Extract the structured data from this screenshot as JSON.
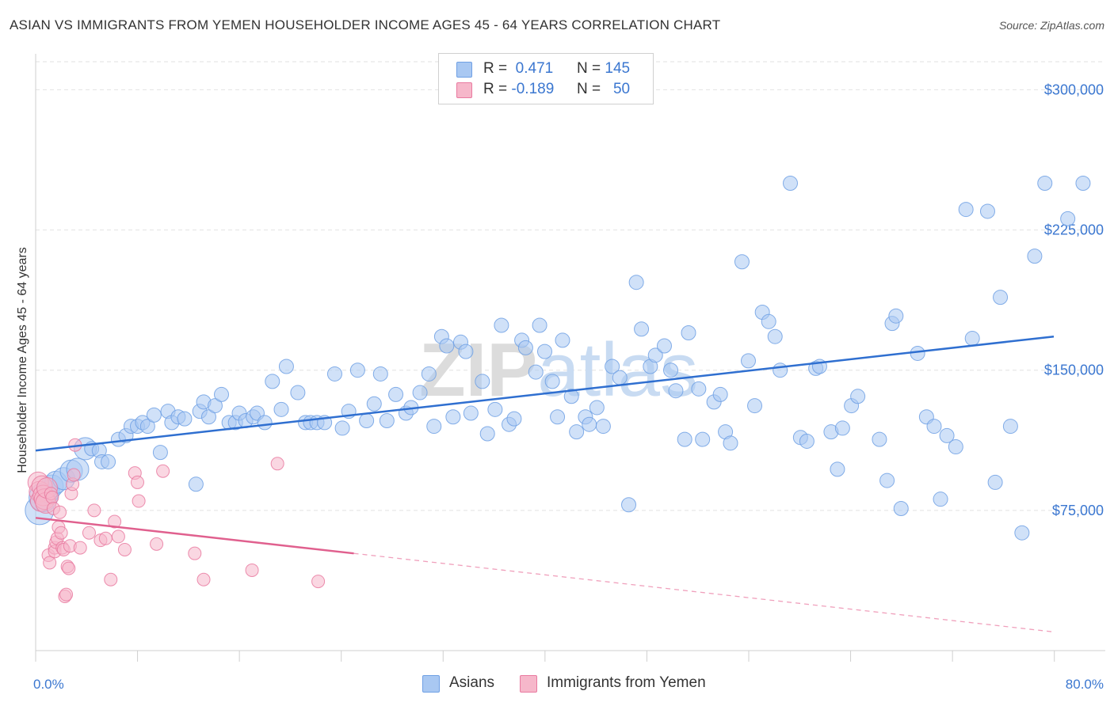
{
  "header": {
    "title": "ASIAN VS IMMIGRANTS FROM YEMEN HOUSEHOLDER INCOME AGES 45 - 64 YEARS CORRELATION CHART",
    "source": "Source: ZipAtlas.com"
  },
  "legend_top": {
    "rows": [
      {
        "r_label": "R =",
        "r_value": "0.471",
        "n_label": "N =",
        "n_value": "145",
        "color": "#a9c8f2"
      },
      {
        "r_label": "R =",
        "r_value": "-0.189",
        "n_label": "N =",
        "n_value": "50",
        "color": "#f6b7ca"
      }
    ]
  },
  "legend_bottom": {
    "items": [
      {
        "label": "Asians",
        "color": "#a9c8f2"
      },
      {
        "label": "Immigrants from Yemen",
        "color": "#f6b7ca"
      }
    ]
  },
  "watermark": "ZIPatlas",
  "chart_data": {
    "type": "scatter",
    "title": "ASIAN VS IMMIGRANTS FROM YEMEN HOUSEHOLDER INCOME AGES 45 - 64 YEARS CORRELATION CHART",
    "xlabel": "",
    "ylabel": "Householder Income Ages 45 - 64 years",
    "xlim": [
      0,
      80
    ],
    "ylim": [
      0,
      315000
    ],
    "x_tick_labels": [
      "0.0%",
      "80.0%"
    ],
    "y_ticks": [
      75000,
      150000,
      225000,
      300000
    ],
    "y_tick_labels": [
      "$75,000",
      "$150,000",
      "$225,000",
      "$300,000"
    ],
    "grid": true,
    "legend_position": "top-center",
    "series": [
      {
        "name": "Asians",
        "color": "#6fa0e4",
        "fill": "#a9c8f2",
        "trend": {
          "x": [
            0,
            80
          ],
          "y": [
            107000,
            168000
          ]
        },
        "points": [
          [
            0.3,
            75000
          ],
          [
            0.6,
            82000
          ],
          [
            1.0,
            85000
          ],
          [
            1.3,
            88000
          ],
          [
            1.6,
            90000
          ],
          [
            2.2,
            92000
          ],
          [
            2.8,
            96000
          ],
          [
            3.3,
            97000
          ],
          [
            3.9,
            108000
          ],
          [
            4.4,
            108000
          ],
          [
            5.0,
            107000
          ],
          [
            5.2,
            101000
          ],
          [
            5.7,
            101000
          ],
          [
            6.5,
            113000
          ],
          [
            7.1,
            115000
          ],
          [
            7.5,
            120000
          ],
          [
            8.0,
            120000
          ],
          [
            8.4,
            122000
          ],
          [
            8.8,
            120000
          ],
          [
            9.3,
            126000
          ],
          [
            9.8,
            106000
          ],
          [
            10.4,
            128000
          ],
          [
            10.7,
            122000
          ],
          [
            11.2,
            125000
          ],
          [
            11.7,
            124000
          ],
          [
            12.6,
            89000
          ],
          [
            12.9,
            128000
          ],
          [
            13.2,
            133000
          ],
          [
            13.6,
            125000
          ],
          [
            14.1,
            131000
          ],
          [
            14.6,
            137000
          ],
          [
            15.2,
            122000
          ],
          [
            15.7,
            122000
          ],
          [
            16.0,
            127000
          ],
          [
            16.5,
            123000
          ],
          [
            17.1,
            125000
          ],
          [
            17.4,
            127000
          ],
          [
            18.0,
            122000
          ],
          [
            18.6,
            144000
          ],
          [
            19.3,
            129000
          ],
          [
            19.7,
            152000
          ],
          [
            20.6,
            138000
          ],
          [
            21.2,
            122000
          ],
          [
            21.6,
            122000
          ],
          [
            22.1,
            122000
          ],
          [
            22.7,
            122000
          ],
          [
            23.5,
            148000
          ],
          [
            24.1,
            119000
          ],
          [
            24.6,
            128000
          ],
          [
            25.3,
            150000
          ],
          [
            26.0,
            123000
          ],
          [
            26.6,
            132000
          ],
          [
            27.1,
            148000
          ],
          [
            27.6,
            123000
          ],
          [
            28.3,
            137000
          ],
          [
            29.1,
            127000
          ],
          [
            29.5,
            130000
          ],
          [
            30.2,
            138000
          ],
          [
            30.9,
            148000
          ],
          [
            31.3,
            120000
          ],
          [
            31.9,
            168000
          ],
          [
            32.3,
            163000
          ],
          [
            32.8,
            125000
          ],
          [
            33.4,
            165000
          ],
          [
            33.8,
            160000
          ],
          [
            34.2,
            127000
          ],
          [
            35.1,
            144000
          ],
          [
            35.5,
            116000
          ],
          [
            36.1,
            129000
          ],
          [
            36.6,
            174000
          ],
          [
            37.2,
            121000
          ],
          [
            37.6,
            124000
          ],
          [
            38.2,
            166000
          ],
          [
            38.5,
            162000
          ],
          [
            39.3,
            149000
          ],
          [
            39.6,
            174000
          ],
          [
            40.0,
            160000
          ],
          [
            40.6,
            144000
          ],
          [
            41.0,
            125000
          ],
          [
            41.4,
            166000
          ],
          [
            42.1,
            136000
          ],
          [
            42.5,
            117000
          ],
          [
            43.2,
            125000
          ],
          [
            43.5,
            121000
          ],
          [
            44.1,
            130000
          ],
          [
            44.6,
            120000
          ],
          [
            45.3,
            152000
          ],
          [
            45.9,
            146000
          ],
          [
            46.6,
            78000
          ],
          [
            47.2,
            197000
          ],
          [
            47.6,
            172000
          ],
          [
            48.3,
            152000
          ],
          [
            48.7,
            158000
          ],
          [
            49.4,
            163000
          ],
          [
            49.9,
            150000
          ],
          [
            50.3,
            139000
          ],
          [
            51.0,
            113000
          ],
          [
            51.3,
            170000
          ],
          [
            52.1,
            140000
          ],
          [
            52.4,
            113000
          ],
          [
            53.3,
            133000
          ],
          [
            53.8,
            137000
          ],
          [
            54.2,
            117000
          ],
          [
            54.6,
            111000
          ],
          [
            55.5,
            208000
          ],
          [
            56.0,
            155000
          ],
          [
            56.5,
            131000
          ],
          [
            57.1,
            181000
          ],
          [
            57.6,
            176000
          ],
          [
            58.1,
            168000
          ],
          [
            58.5,
            150000
          ],
          [
            59.3,
            250000
          ],
          [
            60.1,
            114000
          ],
          [
            60.6,
            112000
          ],
          [
            61.3,
            151000
          ],
          [
            61.6,
            152000
          ],
          [
            62.5,
            117000
          ],
          [
            63.0,
            97000
          ],
          [
            63.4,
            119000
          ],
          [
            64.1,
            131000
          ],
          [
            64.6,
            136000
          ],
          [
            66.3,
            113000
          ],
          [
            66.9,
            91000
          ],
          [
            67.3,
            175000
          ],
          [
            67.6,
            179000
          ],
          [
            68.0,
            76000
          ],
          [
            69.3,
            159000
          ],
          [
            70.0,
            125000
          ],
          [
            70.6,
            120000
          ],
          [
            71.1,
            81000
          ],
          [
            71.6,
            115000
          ],
          [
            72.3,
            109000
          ],
          [
            73.1,
            236000
          ],
          [
            73.6,
            167000
          ],
          [
            74.8,
            235000
          ],
          [
            75.4,
            90000
          ],
          [
            75.8,
            189000
          ],
          [
            76.6,
            120000
          ],
          [
            77.5,
            63000
          ],
          [
            78.5,
            211000
          ],
          [
            79.3,
            250000
          ],
          [
            81.1,
            231000
          ],
          [
            82.3,
            250000
          ]
        ]
      },
      {
        "name": "Immigrants from Yemen",
        "color": "#e97aa0",
        "fill": "#f6b7ca",
        "trend": {
          "x": [
            0,
            25
          ],
          "y": [
            71000,
            52000
          ]
        },
        "trend_extension": {
          "x": [
            25,
            80
          ],
          "y": [
            52000,
            10000
          ]
        },
        "points": [
          [
            0.2,
            90000
          ],
          [
            0.3,
            85000
          ],
          [
            0.4,
            80000
          ],
          [
            0.5,
            88000
          ],
          [
            0.6,
            83000
          ],
          [
            0.7,
            81000
          ],
          [
            0.8,
            79000
          ],
          [
            0.9,
            87000
          ],
          [
            1.0,
            51000
          ],
          [
            1.1,
            47000
          ],
          [
            1.2,
            84000
          ],
          [
            1.3,
            82000
          ],
          [
            1.4,
            76000
          ],
          [
            1.5,
            55000
          ],
          [
            1.5,
            53000
          ],
          [
            1.6,
            58000
          ],
          [
            1.7,
            60000
          ],
          [
            1.8,
            66000
          ],
          [
            1.9,
            74000
          ],
          [
            2.0,
            63000
          ],
          [
            2.1,
            55000
          ],
          [
            2.2,
            54000
          ],
          [
            2.3,
            29000
          ],
          [
            2.4,
            30000
          ],
          [
            2.5,
            45000
          ],
          [
            2.6,
            44000
          ],
          [
            2.7,
            56000
          ],
          [
            2.8,
            84000
          ],
          [
            2.9,
            89000
          ],
          [
            3.0,
            94000
          ],
          [
            3.1,
            110000
          ],
          [
            3.5,
            55000
          ],
          [
            4.2,
            63000
          ],
          [
            4.6,
            75000
          ],
          [
            5.1,
            59000
          ],
          [
            5.5,
            60000
          ],
          [
            5.9,
            38000
          ],
          [
            6.2,
            69000
          ],
          [
            6.5,
            61000
          ],
          [
            7.0,
            54000
          ],
          [
            7.8,
            95000
          ],
          [
            8.0,
            90000
          ],
          [
            8.1,
            80000
          ],
          [
            9.5,
            57000
          ],
          [
            10.0,
            96000
          ],
          [
            12.5,
            52000
          ],
          [
            13.2,
            38000
          ],
          [
            17.0,
            43000
          ],
          [
            19.0,
            100000
          ],
          [
            22.2,
            37000
          ]
        ]
      }
    ]
  }
}
